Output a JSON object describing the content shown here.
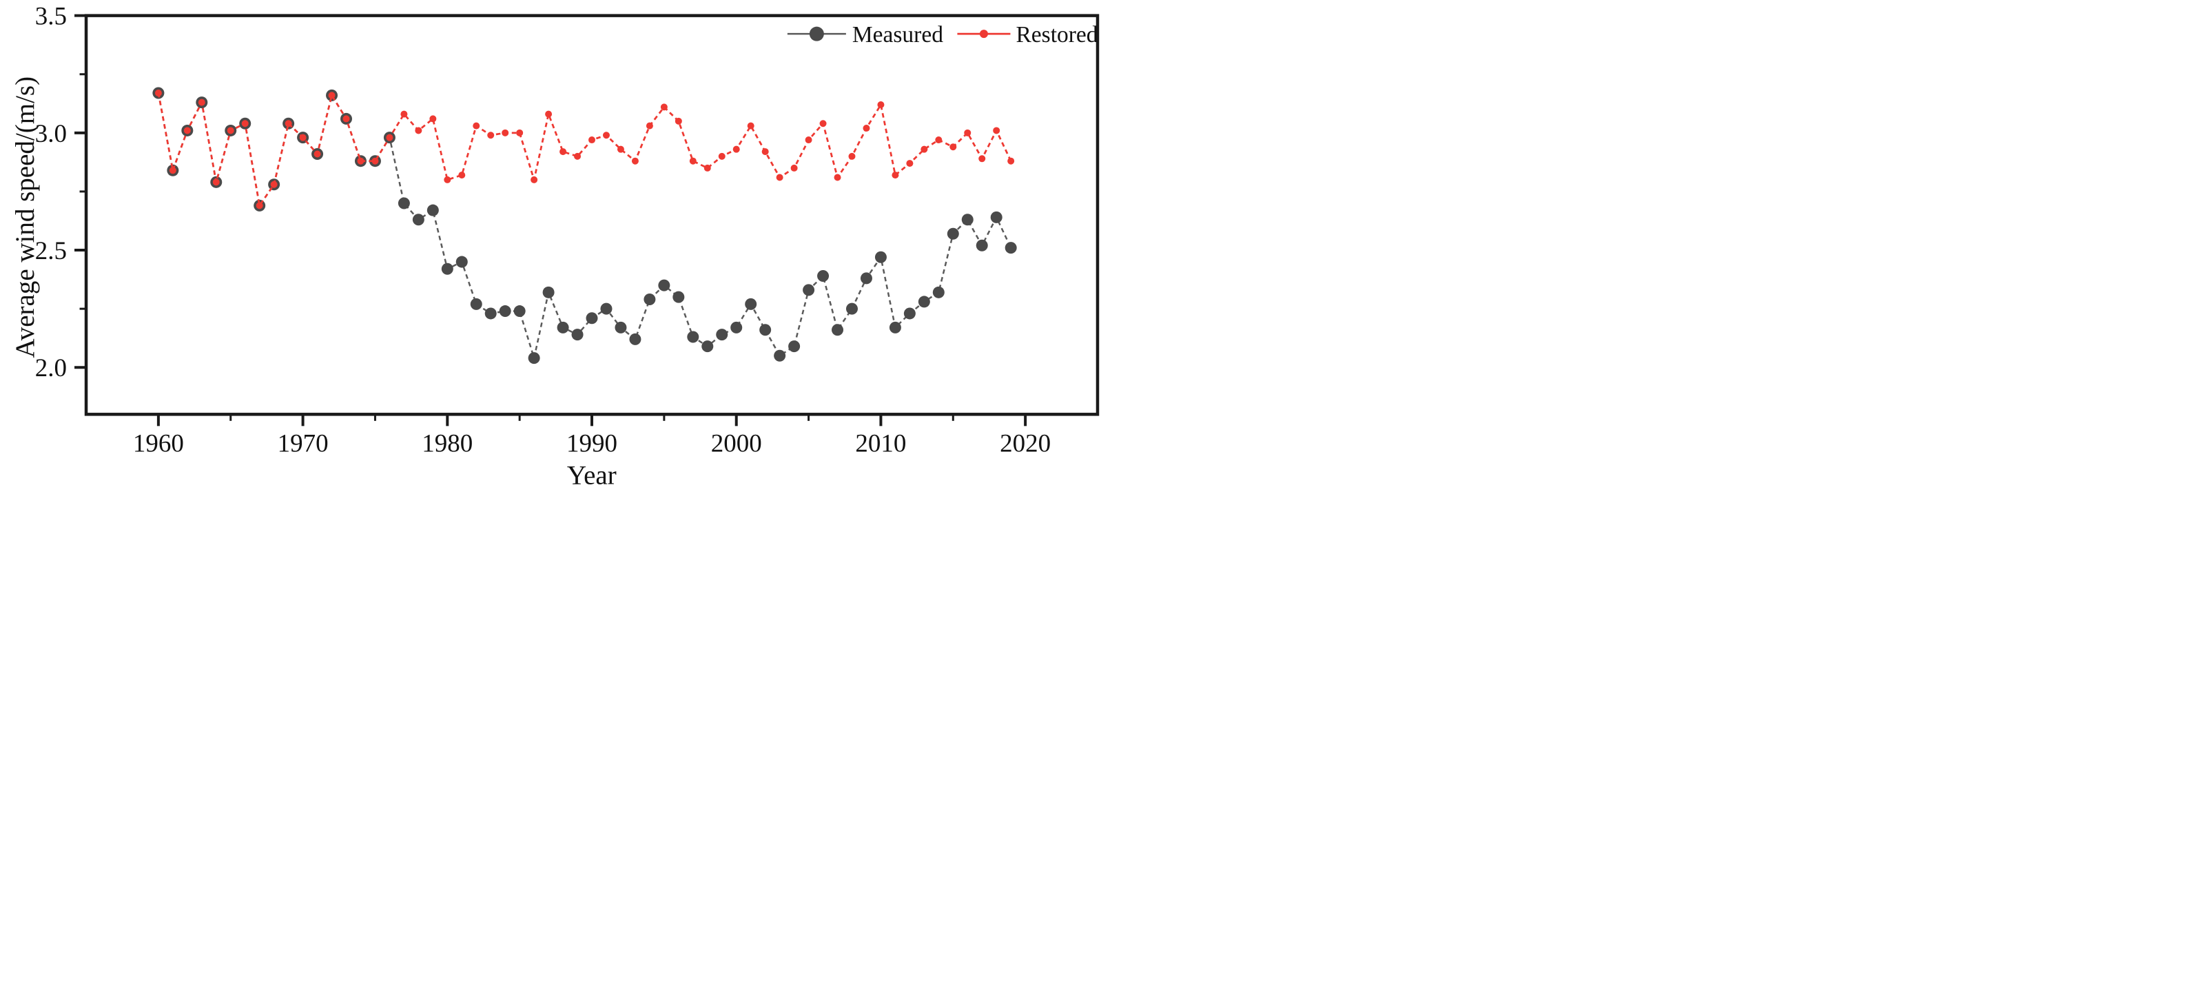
{
  "chart_data": {
    "type": "line",
    "title": "",
    "xlabel": "Year",
    "ylabel": "Average wind speed/(m/s)",
    "xlim": [
      1955,
      2025
    ],
    "ylim": [
      1.8,
      3.5
    ],
    "xticks": [
      1960,
      1970,
      1980,
      1990,
      2000,
      2010,
      2020
    ],
    "xticks_minor": [
      1965,
      1975,
      1985,
      1995,
      2005,
      2015
    ],
    "yticks": [
      2.0,
      2.5,
      3.0,
      3.5
    ],
    "yticks_minor": [
      2.25,
      2.75,
      3.25
    ],
    "grid": false,
    "legend_position": "top-right-inside",
    "axis_color": "#1a1a1a",
    "x": [
      1960,
      1961,
      1962,
      1963,
      1964,
      1965,
      1966,
      1967,
      1968,
      1969,
      1970,
      1971,
      1972,
      1973,
      1974,
      1975,
      1976,
      1977,
      1978,
      1979,
      1980,
      1981,
      1982,
      1983,
      1984,
      1985,
      1986,
      1987,
      1988,
      1989,
      1990,
      1991,
      1992,
      1993,
      1994,
      1995,
      1996,
      1997,
      1998,
      1999,
      2000,
      2001,
      2002,
      2003,
      2004,
      2005,
      2006,
      2007,
      2008,
      2009,
      2010,
      2011,
      2012,
      2013,
      2014,
      2015,
      2016,
      2017,
      2018,
      2019
    ],
    "series": [
      {
        "name": "Measured",
        "color": "#4a4a4a",
        "line_color": "#5a5a5a",
        "marker": "circle",
        "marker_radius": 17,
        "line_width": 5,
        "dash": "13 10",
        "values": [
          3.17,
          2.84,
          3.01,
          3.13,
          2.79,
          3.01,
          3.04,
          2.69,
          2.78,
          3.04,
          2.98,
          2.91,
          3.16,
          3.06,
          2.88,
          2.88,
          2.98,
          2.7,
          2.63,
          2.67,
          2.42,
          2.45,
          2.27,
          2.23,
          2.24,
          2.24,
          2.04,
          2.32,
          2.17,
          2.14,
          2.21,
          2.25,
          2.17,
          2.12,
          2.29,
          2.35,
          2.3,
          2.13,
          2.09,
          2.14,
          2.17,
          2.27,
          2.16,
          2.05,
          2.09,
          2.33,
          2.39,
          2.16,
          2.25,
          2.38,
          2.47,
          2.17,
          2.23,
          2.28,
          2.32,
          2.57,
          2.63,
          2.52,
          2.64,
          2.51
        ]
      },
      {
        "name": "Restored",
        "color": "#ee3932",
        "line_color": "#ee3932",
        "marker": "circle",
        "marker_radius": 10,
        "line_width": 5.5,
        "dash": "13 10",
        "values": [
          3.17,
          2.84,
          3.01,
          3.13,
          2.79,
          3.01,
          3.04,
          2.69,
          2.78,
          3.04,
          2.98,
          2.91,
          3.16,
          3.06,
          2.88,
          2.88,
          2.98,
          3.08,
          3.01,
          3.06,
          2.8,
          2.82,
          3.03,
          2.99,
          3.0,
          3.0,
          2.8,
          3.08,
          2.92,
          2.9,
          2.97,
          2.99,
          2.93,
          2.88,
          3.03,
          3.11,
          3.05,
          2.88,
          2.85,
          2.9,
          2.93,
          3.03,
          2.92,
          2.81,
          2.85,
          2.97,
          3.04,
          2.81,
          2.9,
          3.02,
          3.12,
          2.82,
          2.87,
          2.93,
          2.97,
          2.94,
          3.0,
          2.89,
          3.01,
          2.88
        ]
      }
    ]
  }
}
